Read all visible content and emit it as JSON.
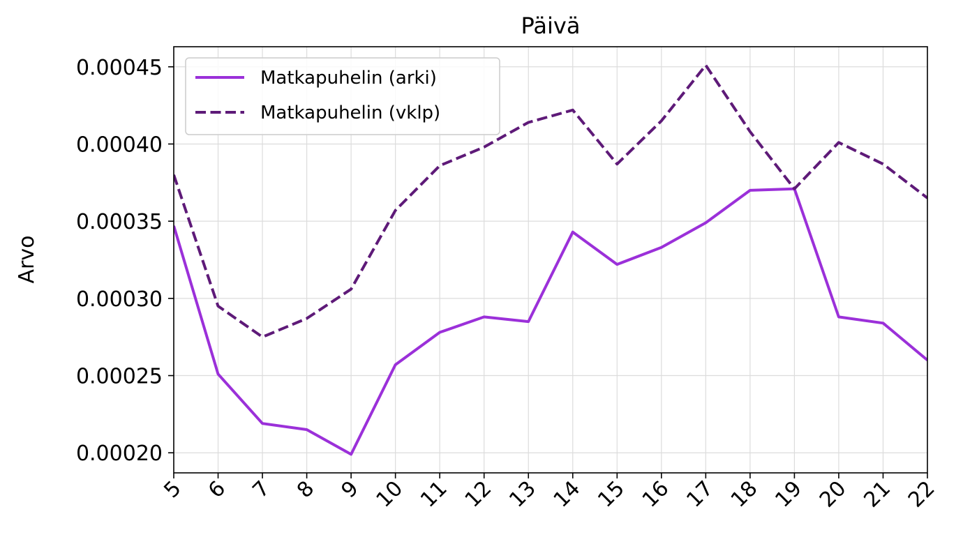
{
  "chart_data": {
    "type": "line",
    "title": "Päivä",
    "xlabel": "",
    "ylabel": "Arvo",
    "x": [
      5,
      6,
      7,
      8,
      9,
      10,
      11,
      12,
      13,
      14,
      15,
      16,
      17,
      18,
      19,
      20,
      21,
      22
    ],
    "xlim": [
      5,
      22
    ],
    "ylim": [
      0.000187,
      0.000463
    ],
    "yticks": [
      0.0002,
      0.00025,
      0.0003,
      0.00035,
      0.0004,
      0.00045
    ],
    "ytick_labels": [
      "0.00020",
      "0.00025",
      "0.00030",
      "0.00035",
      "0.00040",
      "0.00045"
    ],
    "grid": true,
    "legend_position": "top-left",
    "series": [
      {
        "name": "Matkapuhelin (arki)",
        "color": "#9b30d9",
        "style": "solid",
        "values": [
          0.000347,
          0.000251,
          0.000219,
          0.000215,
          0.000199,
          0.000257,
          0.000278,
          0.000288,
          0.000285,
          0.000343,
          0.000322,
          0.000333,
          0.000349,
          0.00037,
          0.000371,
          0.000288,
          0.000284,
          0.00026
        ]
      },
      {
        "name": "Matkapuhelin (vklp)",
        "color": "#5e1a78",
        "style": "dashed",
        "values": [
          0.00038,
          0.000295,
          0.000275,
          0.000287,
          0.000306,
          0.000357,
          0.000386,
          0.000398,
          0.000414,
          0.000422,
          0.000387,
          0.000415,
          0.000451,
          0.000408,
          0.000371,
          0.000401,
          0.000387,
          0.000365
        ]
      }
    ]
  }
}
